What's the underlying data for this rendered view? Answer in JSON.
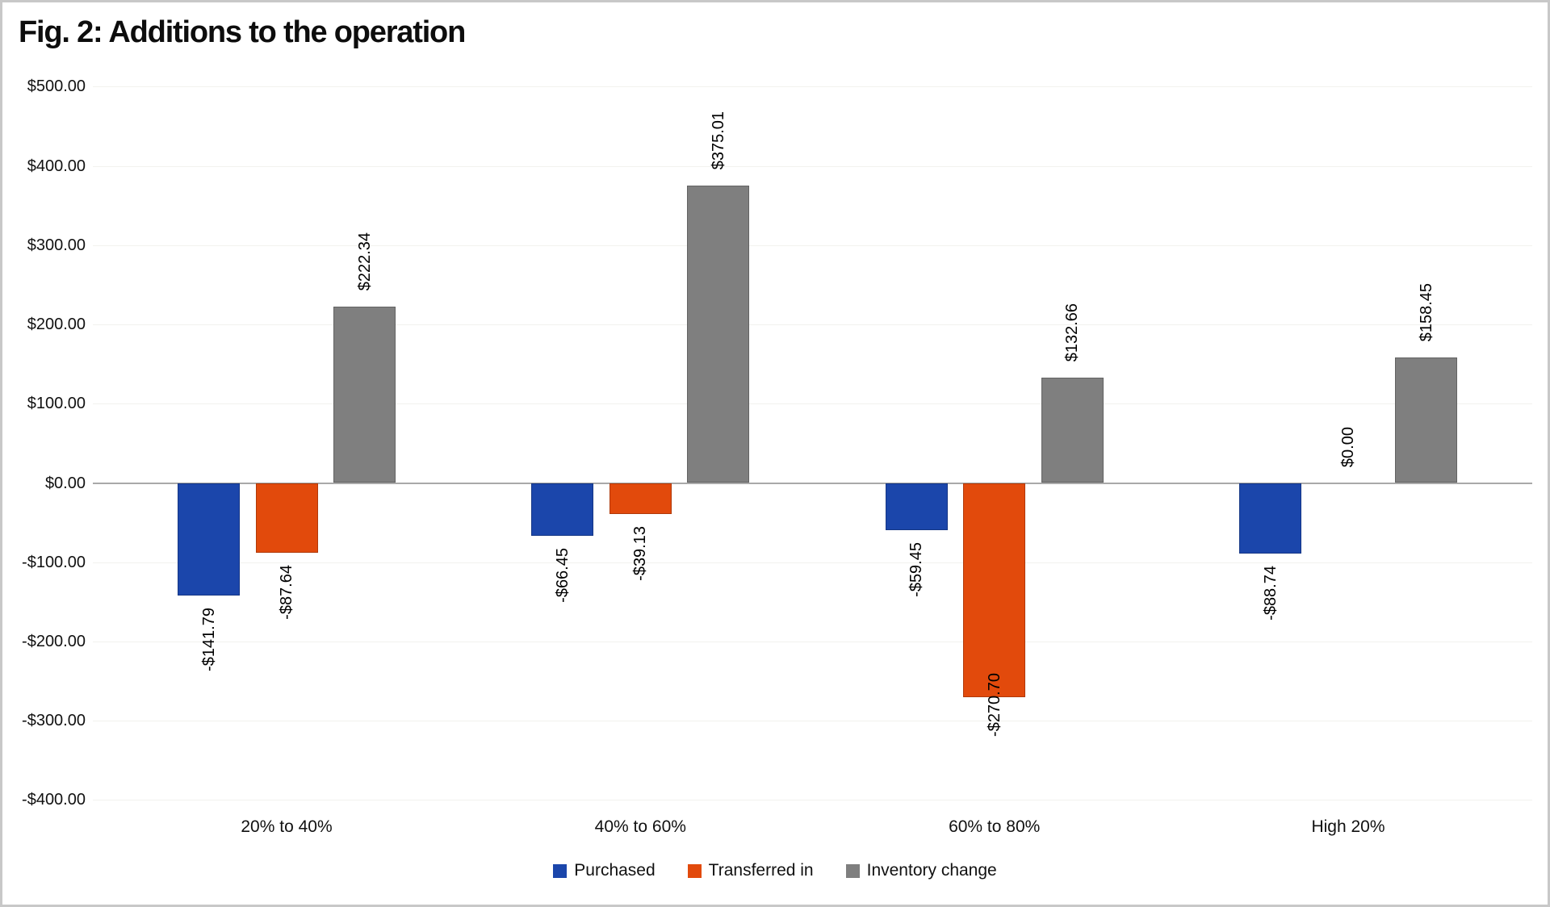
{
  "title": "Fig. 2: Additions to the operation",
  "chart_data": {
    "type": "bar",
    "title": "Fig. 2: Additions to the operation",
    "categories": [
      "20% to 40%",
      "40% to 60%",
      "60% to 80%",
      "High 20%"
    ],
    "series": [
      {
        "name": "Purchased",
        "color": "#1b46ab",
        "values": [
          -141.79,
          -66.45,
          -59.45,
          -88.74
        ],
        "labels": [
          "-$141.79",
          "-$66.45",
          "-$59.45",
          "-$88.74"
        ]
      },
      {
        "name": "Transferred in",
        "color": "#e24a0c",
        "values": [
          -87.64,
          -39.13,
          -270.7,
          0
        ],
        "labels": [
          "-$87.64",
          "-$39.13",
          "-$270.70",
          "$0.00"
        ]
      },
      {
        "name": "Inventory change",
        "color": "#7f7f7f",
        "values": [
          222.34,
          375.01,
          132.66,
          158.45
        ],
        "labels": [
          "$222.34",
          "$375.01",
          "$132.66",
          "$158.45"
        ]
      }
    ],
    "y_axis": {
      "min": -400,
      "max": 500,
      "step": 100,
      "tick_labels": [
        "$500.00",
        "$400.00",
        "$300.00",
        "$200.00",
        "$100.00",
        "$0.00",
        "-$100.00",
        "-$200.00",
        "-$300.00",
        "-$400.00"
      ]
    },
    "legend": [
      "Purchased",
      "Transferred in",
      "Inventory change"
    ],
    "legend_position": "bottom",
    "grid": "faint horizontal",
    "colors": {
      "axis_line": "#a9a9a9",
      "gridline": "#f2f2ee",
      "frame_border": "#c8c8c8",
      "label_text": "#000000"
    }
  }
}
